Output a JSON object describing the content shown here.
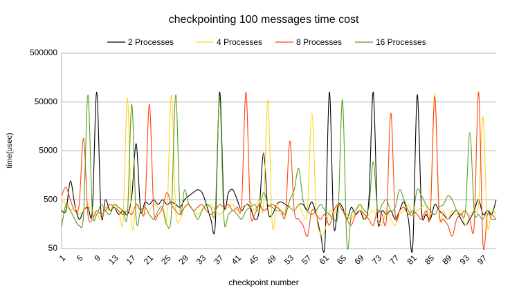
{
  "chart_data": {
    "type": "line",
    "title": "checkpointing 100 messages time cost",
    "x_label": "checkpoint number",
    "y_label": "time(usec)",
    "log_scale": true,
    "grid": true,
    "legend": "top",
    "ylim": [
      50,
      500000
    ],
    "yticks": [
      50,
      500,
      5000,
      50000,
      500000
    ],
    "categories": [
      1,
      null,
      null,
      null,
      5,
      null,
      null,
      null,
      9,
      null,
      null,
      null,
      13,
      null,
      null,
      null,
      17,
      null,
      null,
      null,
      21,
      null,
      null,
      null,
      25,
      null,
      null,
      null,
      29,
      null,
      null,
      null,
      33,
      null,
      null,
      null,
      37,
      null,
      null,
      null,
      41,
      null,
      null,
      null,
      45,
      null,
      null,
      null,
      49,
      null,
      null,
      null,
      53,
      null,
      null,
      null,
      57,
      null,
      null,
      null,
      61,
      null,
      null,
      null,
      65,
      null,
      null,
      null,
      69,
      null,
      null,
      null,
      73,
      null,
      null,
      null,
      77,
      null,
      null,
      null,
      81,
      null,
      null,
      null,
      85,
      null,
      null,
      null,
      89,
      null,
      null,
      null,
      93,
      null,
      null,
      null,
      97,
      null,
      null,
      null
    ],
    "series": [
      {
        "name": "2 Processes",
        "color": "#000000",
        "values": [
          300,
          300,
          1200,
          400,
          200,
          300,
          350,
          300,
          80000,
          250,
          500,
          300,
          350,
          250,
          300,
          250,
          600,
          7000,
          300,
          450,
          400,
          500,
          400,
          500,
          400,
          450,
          400,
          350,
          500,
          600,
          700,
          800,
          700,
          400,
          200,
          150,
          80000,
          400,
          700,
          800,
          500,
          300,
          400,
          350,
          200,
          300,
          4500,
          300,
          250,
          400,
          450,
          400,
          350,
          300,
          400,
          400,
          300,
          450,
          250,
          100,
          65,
          80000,
          150,
          400,
          350,
          200,
          350,
          250,
          300,
          200,
          500,
          80000,
          200,
          300,
          250,
          300,
          200,
          300,
          450,
          200,
          55,
          70000,
          300,
          250,
          200,
          400,
          300,
          250,
          200,
          250,
          300,
          200,
          150,
          200,
          300,
          500,
          250,
          300,
          250,
          500
        ]
      },
      {
        "name": "4 Processes",
        "color": "#ffd320",
        "values": [
          500,
          400,
          300,
          350,
          250,
          300,
          400,
          300,
          250,
          200,
          350,
          300,
          400,
          300,
          200,
          60000,
          150,
          400,
          300,
          250,
          300,
          400,
          350,
          300,
          250,
          70000,
          300,
          200,
          350,
          400,
          300,
          250,
          300,
          350,
          400,
          300,
          250,
          300,
          350,
          400,
          300,
          350,
          400,
          450,
          300,
          500,
          350,
          55000,
          150,
          400,
          250,
          300,
          350,
          300,
          400,
          250,
          300,
          30000,
          300,
          100,
          120,
          300,
          250,
          400,
          300,
          250,
          200,
          300,
          400,
          200,
          250,
          300,
          200,
          150,
          300,
          200,
          150,
          250,
          300,
          400,
          250,
          300,
          350,
          400,
          300,
          75000,
          250,
          300,
          200,
          300,
          250,
          300,
          150,
          250,
          300,
          400,
          25000,
          150,
          300,
          250
        ]
      },
      {
        "name": "8 Processes",
        "color": "#ff420e",
        "values": [
          600,
          900,
          500,
          300,
          400,
          9000,
          250,
          200,
          300,
          250,
          300,
          400,
          350,
          300,
          250,
          300,
          250,
          400,
          300,
          350,
          45000,
          300,
          250,
          350,
          700,
          400,
          300,
          250,
          350,
          400,
          300,
          350,
          400,
          300,
          250,
          300,
          400,
          350,
          400,
          300,
          350,
          400,
          80000,
          300,
          250,
          400,
          300,
          350,
          400,
          350,
          300,
          250,
          8000,
          300,
          200,
          150,
          90,
          300,
          250,
          200,
          250,
          150,
          300,
          400,
          300,
          200,
          150,
          250,
          300,
          250,
          200,
          150,
          300,
          250,
          200,
          30000,
          250,
          300,
          350,
          250,
          300,
          250,
          200,
          300,
          250,
          65000,
          300,
          200,
          150,
          90,
          200,
          250,
          300,
          200,
          150,
          80000,
          60,
          250,
          200,
          200
        ]
      },
      {
        "name": "16 Processes",
        "color": "#579d1c",
        "values": [
          140,
          400,
          300,
          200,
          150,
          250,
          70000,
          300,
          250,
          400,
          300,
          250,
          400,
          350,
          300,
          250,
          45000,
          200,
          300,
          350,
          250,
          200,
          300,
          350,
          150,
          250,
          70000,
          300,
          800,
          400,
          300,
          200,
          300,
          400,
          350,
          300,
          60000,
          200,
          250,
          300,
          250,
          200,
          300,
          350,
          400,
          300,
          700,
          400,
          350,
          300,
          300,
          250,
          500,
          800,
          2200,
          500,
          300,
          250,
          300,
          400,
          300,
          250,
          200,
          300,
          55000,
          60,
          250,
          300,
          400,
          300,
          350,
          3000,
          300,
          400,
          500,
          300,
          350,
          800,
          500,
          300,
          250,
          800,
          600,
          400,
          300,
          250,
          350,
          400,
          600,
          500,
          300,
          250,
          300,
          12000,
          300,
          250,
          200,
          300,
          250,
          200
        ]
      }
    ]
  }
}
